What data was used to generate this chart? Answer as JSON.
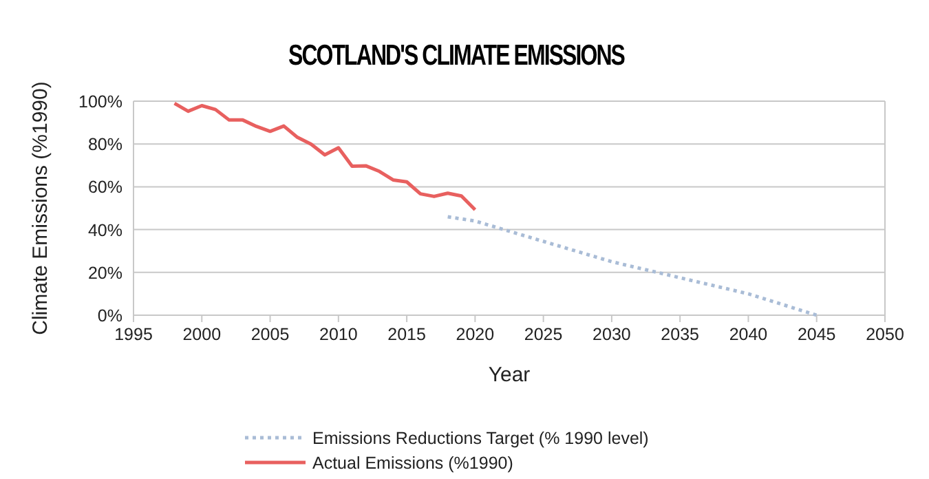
{
  "chart_data": {
    "type": "line",
    "title": "SCOTLAND'S CLIMATE EMISSIONS",
    "xlabel": "Year",
    "ylabel": "Climate Emissions (%1990)",
    "xlim": [
      1995,
      2050
    ],
    "xticks": [
      1995,
      2000,
      2005,
      2010,
      2015,
      2020,
      2025,
      2030,
      2035,
      2040,
      2045,
      2050
    ],
    "ylim": [
      0,
      100
    ],
    "yticks": [
      {
        "value": 0,
        "label": "0%"
      },
      {
        "value": 20,
        "label": "20%"
      },
      {
        "value": 40,
        "label": "40%"
      },
      {
        "value": 60,
        "label": "60%"
      },
      {
        "value": 80,
        "label": "80%"
      },
      {
        "value": 100,
        "label": "100%"
      }
    ],
    "grid": "y",
    "legend": "bottom",
    "series": [
      {
        "name": "Emissions Reductions Target (% 1990 level)",
        "color": "#a9bcd6",
        "line_style": "dotted",
        "x": [
          2018,
          2020,
          2030,
          2040,
          2045
        ],
        "values": [
          46,
          44,
          25,
          10,
          0
        ]
      },
      {
        "name": "Actual Emissions (%1990)",
        "color": "#e8605f",
        "line_style": "solid",
        "x": [
          1998,
          1999,
          2000,
          2001,
          2002,
          2003,
          2004,
          2005,
          2006,
          2007,
          2008,
          2009,
          2010,
          2011,
          2012,
          2013,
          2014,
          2015,
          2016,
          2017,
          2018,
          2019,
          2020
        ],
        "values": [
          99,
          95.3,
          97.9,
          96.1,
          91.2,
          91.2,
          88.2,
          85.9,
          88.4,
          83.1,
          79.9,
          74.9,
          78.2,
          69.6,
          69.8,
          67.2,
          63.2,
          62.3,
          56.7,
          55.5,
          57,
          55.7,
          49.3
        ]
      }
    ]
  }
}
